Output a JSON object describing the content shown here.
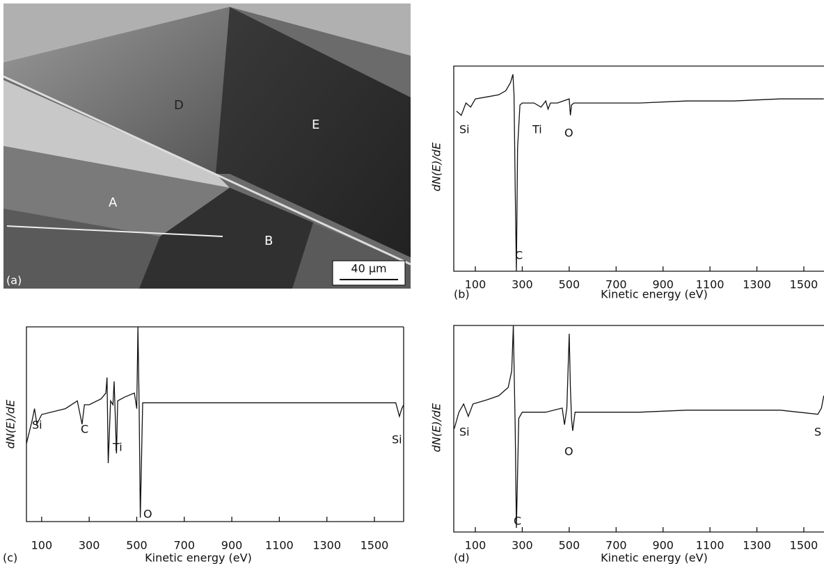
{
  "image": {
    "labels": [
      "A",
      "B",
      "D",
      "E"
    ],
    "panel": "(a)",
    "scale_bar": "40 µm"
  },
  "chart_data": [
    {
      "type": "line",
      "panel": "(b)",
      "x_label": "Kinetic energy (eV)",
      "y_label": "dN(E)/dE",
      "color": "#111111",
      "annotations": [
        "Si",
        "Ti",
        "O",
        "C"
      ],
      "x": [
        20,
        40,
        60,
        80,
        100,
        150,
        200,
        230,
        250,
        260,
        265,
        270,
        275,
        280,
        290,
        300,
        350,
        380,
        400,
        410,
        420,
        450,
        500,
        505,
        510,
        520,
        600,
        800,
        1000,
        1200,
        1400,
        1585
      ],
      "values": [
        78,
        76,
        82,
        80,
        84,
        85,
        86,
        88,
        92,
        96,
        86,
        40,
        0,
        60,
        81,
        82,
        82,
        80,
        83,
        79,
        82,
        82,
        84,
        76,
        81,
        82,
        82,
        82,
        83,
        83,
        84,
        84
      ],
      "xlim": [
        8,
        1586
      ],
      "ylim": [
        0,
        100
      ],
      "xticks": [
        100,
        300,
        500,
        700,
        900,
        1100,
        1300,
        1500
      ]
    },
    {
      "type": "line",
      "panel": "(c)",
      "x_label": "Kinetic energy (eV)",
      "y_label": "dN(E)/dE",
      "color": "#111111",
      "annotations": [
        "Si",
        "C",
        "Ti",
        "O",
        "Si"
      ],
      "x": [
        36,
        60,
        70,
        80,
        100,
        200,
        250,
        270,
        280,
        300,
        350,
        370,
        375,
        380,
        390,
        400,
        405,
        415,
        420,
        450,
        490,
        500,
        505,
        510,
        515,
        525,
        600,
        800,
        1000,
        1200,
        1400,
        1590,
        1605,
        1615,
        1623
      ],
      "values": [
        40,
        52,
        58,
        50,
        55,
        58,
        62,
        50,
        60,
        60,
        63,
        66,
        74,
        30,
        62,
        60,
        72,
        35,
        62,
        64,
        66,
        58,
        100,
        60,
        2,
        61,
        61,
        61,
        61,
        61,
        61,
        61,
        54,
        58,
        60
      ],
      "xlim": [
        36,
        1623
      ],
      "ylim": [
        0,
        100
      ],
      "xticks": [
        100,
        300,
        500,
        700,
        900,
        1100,
        1300,
        1500
      ]
    },
    {
      "type": "line",
      "panel": "(d)",
      "x_label": "Kinetic energy (eV)",
      "y_label": "dN(E)/dE",
      "color": "#111111",
      "annotations": [
        "Si",
        "O",
        "C",
        "S"
      ],
      "x": [
        10,
        30,
        50,
        70,
        90,
        150,
        200,
        240,
        255,
        262,
        270,
        275,
        285,
        300,
        400,
        470,
        480,
        490,
        500,
        505,
        510,
        515,
        525,
        600,
        800,
        1000,
        1200,
        1400,
        1560,
        1575,
        1585
      ],
      "values": [
        50,
        58,
        62,
        56,
        62,
        64,
        66,
        70,
        78,
        100,
        50,
        2,
        55,
        58,
        58,
        60,
        52,
        60,
        96,
        70,
        55,
        49,
        58,
        58,
        58,
        59,
        59,
        59,
        57,
        60,
        66
      ],
      "xlim": [
        8,
        1586
      ],
      "ylim": [
        0,
        100
      ],
      "xticks": [
        100,
        300,
        500,
        700,
        900,
        1100,
        1300,
        1500
      ]
    }
  ]
}
